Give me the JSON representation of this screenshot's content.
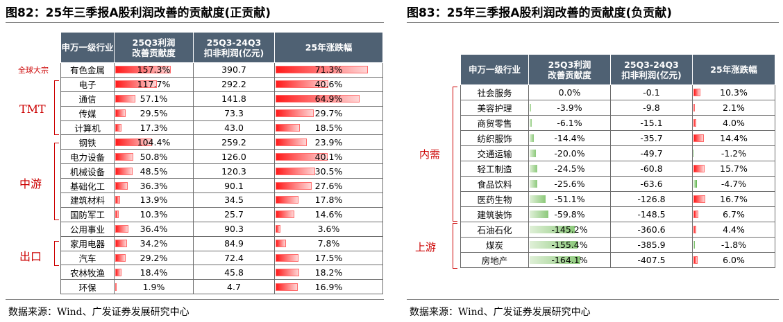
{
  "left": {
    "title": "图82：25年三季报A股利润改善的贡献度(正贡献)",
    "headers": [
      "申万一级行业",
      "25Q3利润\n改善贡献度",
      "25Q3-24Q3\n扣非利润(亿元)",
      "25年涨跌幅"
    ],
    "rows": [
      {
        "name": "有色金属",
        "contrib": "157.3%",
        "profit": "390.7",
        "change": "71.3%",
        "c": 1.573,
        "g": 0.713
      },
      {
        "name": "电子",
        "contrib": "117.7%",
        "profit": "292.2",
        "change": "40.6%",
        "c": 1.177,
        "g": 0.406
      },
      {
        "name": "通信",
        "contrib": "57.1%",
        "profit": "141.8",
        "change": "64.9%",
        "c": 0.571,
        "g": 0.649
      },
      {
        "name": "传媒",
        "contrib": "29.5%",
        "profit": "73.3",
        "change": "29.7%",
        "c": 0.295,
        "g": 0.297
      },
      {
        "name": "计算机",
        "contrib": "17.3%",
        "profit": "43.0",
        "change": "18.5%",
        "c": 0.173,
        "g": 0.185
      },
      {
        "name": "钢铁",
        "contrib": "104.4%",
        "profit": "259.2",
        "change": "23.9%",
        "c": 1.044,
        "g": 0.239
      },
      {
        "name": "电力设备",
        "contrib": "50.8%",
        "profit": "126.0",
        "change": "40.1%",
        "c": 0.508,
        "g": 0.401
      },
      {
        "name": "机械设备",
        "contrib": "48.5%",
        "profit": "120.3",
        "change": "30.5%",
        "c": 0.485,
        "g": 0.305
      },
      {
        "name": "基础化工",
        "contrib": "36.3%",
        "profit": "90.1",
        "change": "27.6%",
        "c": 0.363,
        "g": 0.276
      },
      {
        "name": "建筑材料",
        "contrib": "13.9%",
        "profit": "34.5",
        "change": "17.8%",
        "c": 0.139,
        "g": 0.178
      },
      {
        "name": "国防军工",
        "contrib": "10.3%",
        "profit": "25.7",
        "change": "14.6%",
        "c": 0.103,
        "g": 0.146
      },
      {
        "name": "公用事业",
        "contrib": "36.4%",
        "profit": "90.3",
        "change": "3.6%",
        "c": 0.364,
        "g": 0.036
      },
      {
        "name": "家用电器",
        "contrib": "34.2%",
        "profit": "84.9",
        "change": "7.8%",
        "c": 0.342,
        "g": 0.078
      },
      {
        "name": "汽车",
        "contrib": "29.2%",
        "profit": "72.4",
        "change": "17.5%",
        "c": 0.292,
        "g": 0.175
      },
      {
        "name": "农林牧渔",
        "contrib": "18.4%",
        "profit": "45.8",
        "change": "18.2%",
        "c": 0.184,
        "g": 0.182
      },
      {
        "name": "环保",
        "contrib": "1.9%",
        "profit": "4.7",
        "change": "16.9%",
        "c": 0.019,
        "g": 0.169
      }
    ],
    "groups": [
      "全球大宗",
      "TMT",
      "中游",
      "出口"
    ],
    "source": "数据来源：Wind、广发证券发展研究中心"
  },
  "right": {
    "title": "图83：25年三季报A股利润改善的贡献度(负贡献)",
    "headers": [
      "申万一级行业",
      "25Q3利润\n改善贡献度",
      "25Q3-24Q3\n扣非利润(亿元)",
      "25年涨跌幅"
    ],
    "rows": [
      {
        "name": "社会服务",
        "contrib": "0.0%",
        "profit": "-0.1",
        "change": "10.3%",
        "c": 0.0,
        "g": 0.103
      },
      {
        "name": "美容护理",
        "contrib": "-3.9%",
        "profit": "-9.8",
        "change": "2.1%",
        "c": -0.039,
        "g": 0.021
      },
      {
        "name": "商贸零售",
        "contrib": "-6.1%",
        "profit": "-15.1",
        "change": "4.0%",
        "c": -0.061,
        "g": 0.04
      },
      {
        "name": "纺织服饰",
        "contrib": "-14.4%",
        "profit": "-35.7",
        "change": "14.4%",
        "c": -0.144,
        "g": 0.144
      },
      {
        "name": "交通运输",
        "contrib": "-20.0%",
        "profit": "-49.7",
        "change": "-1.2%",
        "c": -0.2,
        "g": -0.012
      },
      {
        "name": "轻工制造",
        "contrib": "-24.5%",
        "profit": "-60.8",
        "change": "15.7%",
        "c": -0.245,
        "g": 0.157
      },
      {
        "name": "食品饮料",
        "contrib": "-25.6%",
        "profit": "-63.6",
        "change": "-4.7%",
        "c": -0.256,
        "g": -0.047
      },
      {
        "name": "医药生物",
        "contrib": "-51.1%",
        "profit": "-126.8",
        "change": "16.7%",
        "c": -0.511,
        "g": 0.167
      },
      {
        "name": "建筑装饰",
        "contrib": "-59.8%",
        "profit": "-148.5",
        "change": "6.7%",
        "c": -0.598,
        "g": 0.067
      },
      {
        "name": "石油石化",
        "contrib": "-145.2%",
        "profit": "-360.6",
        "change": "4.4%",
        "c": -1.452,
        "g": 0.044
      },
      {
        "name": "煤炭",
        "contrib": "-155.4%",
        "profit": "-385.9",
        "change": "-1.8%",
        "c": -1.554,
        "g": -0.018
      },
      {
        "name": "房地产",
        "contrib": "-164.1%",
        "profit": "-407.5",
        "change": "6.0%",
        "c": -1.641,
        "g": 0.06
      }
    ],
    "groups": [
      "内需",
      "上游"
    ],
    "source": "数据来源：Wind、广发证券发展研究中心"
  }
}
